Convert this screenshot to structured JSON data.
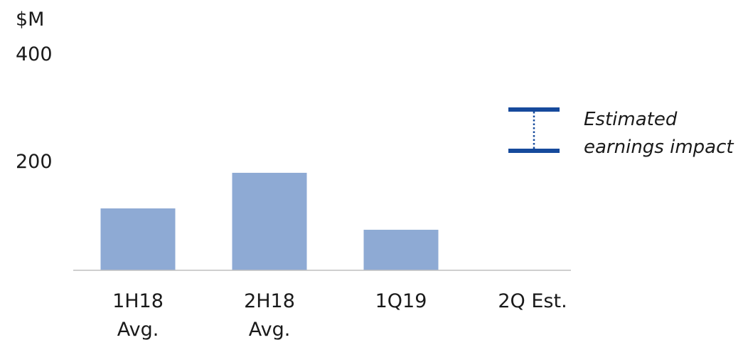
{
  "chart_data": {
    "type": "bar",
    "unit_label": "$M",
    "categories": [
      [
        "1H18",
        "Avg."
      ],
      [
        "2H18",
        "Avg."
      ],
      [
        "1Q19"
      ],
      [
        "2Q Est."
      ]
    ],
    "values": [
      113,
      178,
      74,
      null
    ],
    "y_ticks": [
      "400",
      "200"
    ],
    "ylim": [
      0,
      400
    ],
    "bar_color": "#8eaad4",
    "axis_color": "#bfbfbf",
    "legend": {
      "symbol": "range-bracket",
      "color": "#164a9c",
      "label_lines": [
        "Estimated",
        "earnings impact"
      ]
    }
  }
}
